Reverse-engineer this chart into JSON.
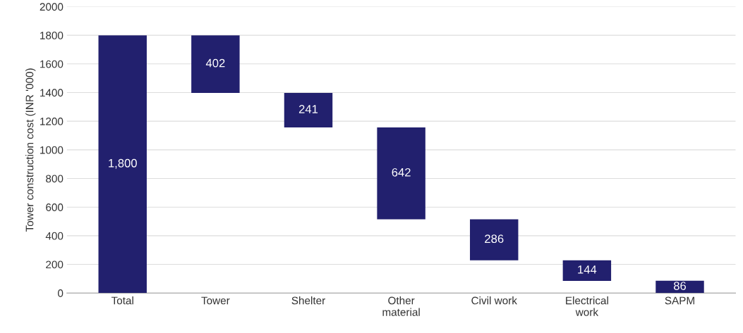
{
  "chart_data": {
    "type": "bar",
    "ylabel": "Tower construction cost (INR '000)",
    "categories": [
      "Total",
      "Tower",
      "Shelter",
      "Other\nmaterial",
      "Civil work",
      "Electrical\nwork",
      "SAPM"
    ],
    "values": [
      1800,
      402,
      241,
      642,
      286,
      144,
      86
    ],
    "base": [
      0,
      1398,
      1157,
      515,
      229,
      85,
      0
    ],
    "value_labels": [
      "1,800",
      "402",
      "241",
      "642",
      "286",
      "144",
      "86"
    ],
    "color": "#22206e",
    "ylim": [
      0,
      2000
    ],
    "yticks": [
      0,
      200,
      400,
      600,
      800,
      1000,
      1200,
      1400,
      1600,
      1800,
      2000
    ],
    "grid": "y"
  }
}
